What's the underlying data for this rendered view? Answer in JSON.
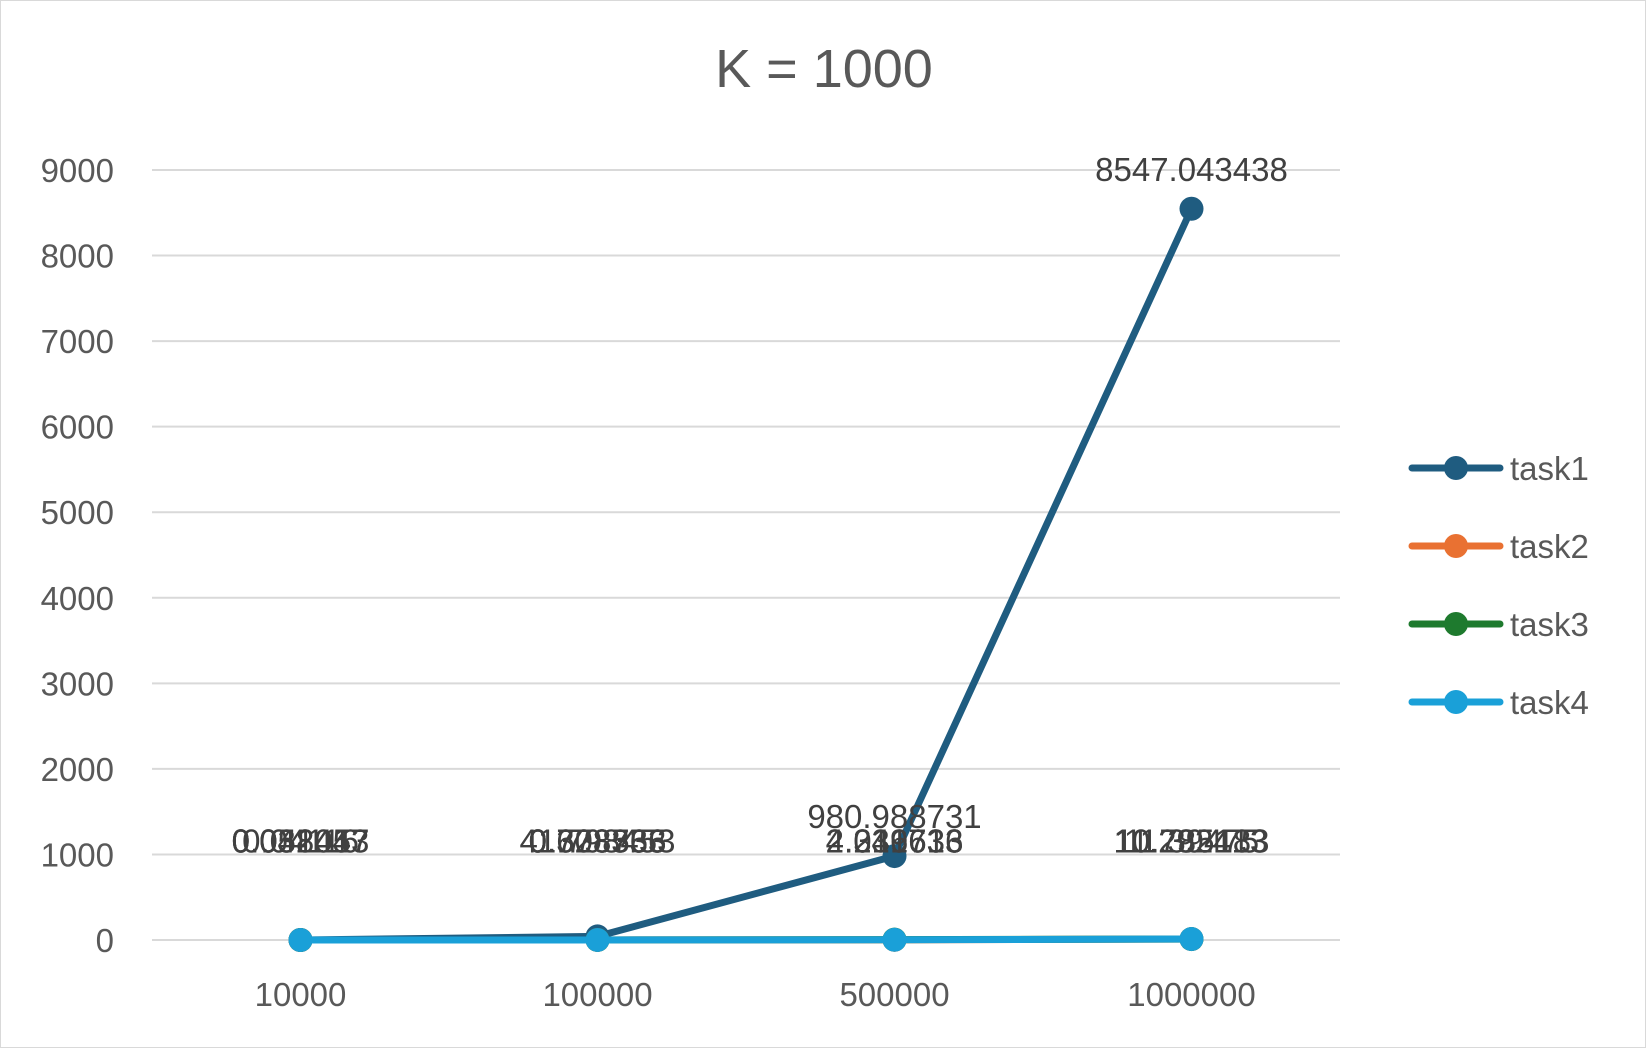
{
  "chart_data": {
    "type": "line",
    "title": "K = 1000",
    "xlabel": "",
    "ylabel": "",
    "categories": [
      "10000",
      "100000",
      "500000",
      "1000000"
    ],
    "ylim": [
      0,
      9000
    ],
    "yticks": [
      0,
      1000,
      2000,
      3000,
      4000,
      5000,
      6000,
      7000,
      8000,
      9000
    ],
    "grid": true,
    "legend_position": "right",
    "series": [
      {
        "name": "task1",
        "color": "#1f5c80",
        "values": [
          0.031447,
          41.798453,
          980.988731,
          8547.043438
        ],
        "labels": [
          "0.031447",
          "41.798453",
          "980.988731",
          "8547.043438"
        ]
      },
      {
        "name": "task2",
        "color": "#e97132",
        "values": [
          0.052017,
          0.603355,
          2.031613,
          11.292413
        ],
        "labels": [
          "0.052017",
          "0.603355",
          "2.031613",
          "11.292413"
        ]
      },
      {
        "name": "task3",
        "color": "#1e7a2e",
        "values": [
          0.04116,
          0.378766,
          4.216736,
          10.785183
        ],
        "labels": [
          "0.04116",
          "0.378766",
          "4.216736",
          "10.785183"
        ]
      },
      {
        "name": "task4",
        "color": "#1aa0d8",
        "values": [
          0.048453,
          0.728533,
          2.349633,
          11.39475
        ],
        "labels": [
          "0.048453",
          "0.728533",
          "2.349633",
          "11.39475"
        ]
      }
    ]
  }
}
